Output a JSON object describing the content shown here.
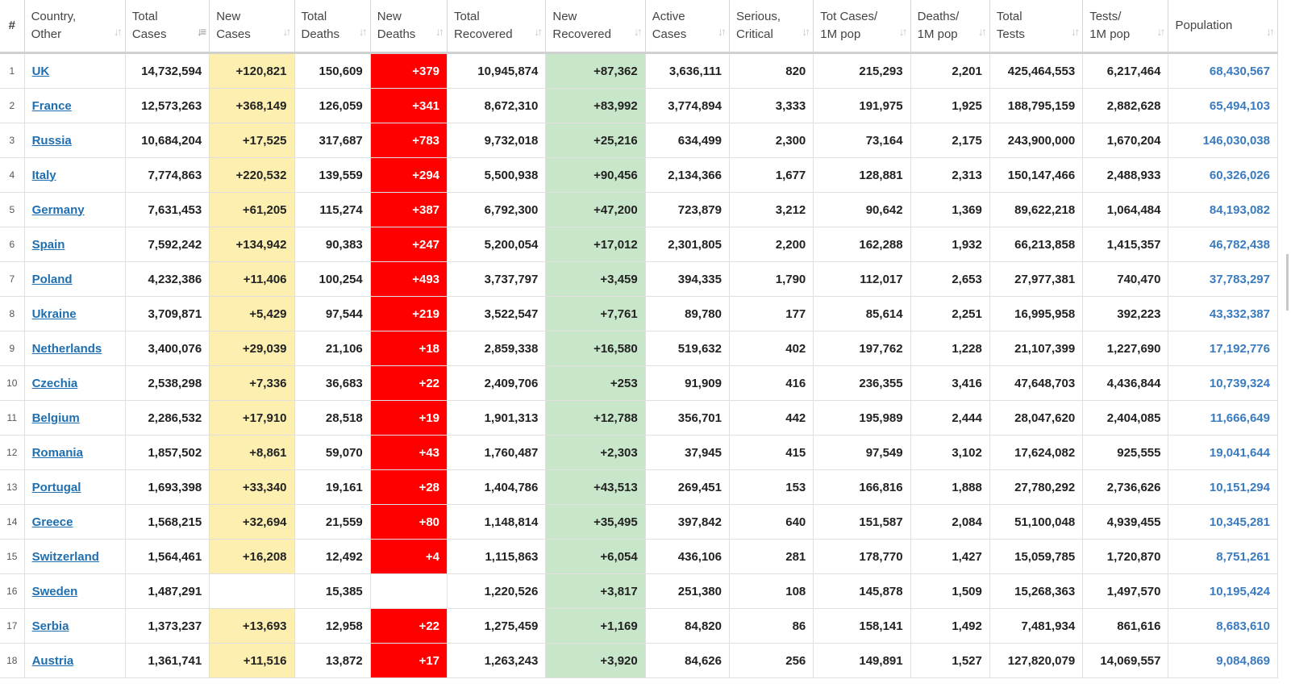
{
  "headers": [
    {
      "line1": "#",
      "line2": ""
    },
    {
      "line1": "Country,",
      "line2": "Other"
    },
    {
      "line1": "Total",
      "line2": "Cases"
    },
    {
      "line1": "New",
      "line2": "Cases"
    },
    {
      "line1": "Total",
      "line2": "Deaths"
    },
    {
      "line1": "New",
      "line2": "Deaths"
    },
    {
      "line1": "Total",
      "line2": "Recovered"
    },
    {
      "line1": "New",
      "line2": "Recovered"
    },
    {
      "line1": "Active",
      "line2": "Cases"
    },
    {
      "line1": "Serious,",
      "line2": "Critical"
    },
    {
      "line1": "Tot Cases/",
      "line2": "1M pop"
    },
    {
      "line1": "Deaths/",
      "line2": "1M pop"
    },
    {
      "line1": "Total",
      "line2": "Tests"
    },
    {
      "line1": "Tests/",
      "line2": "1M pop"
    },
    {
      "line1": "Population",
      "line2": ""
    }
  ],
  "sorted_column": "Total Cases",
  "colors": {
    "new_cases_bg": "#fcefb0",
    "new_deaths_bg": "#ff0000",
    "new_recovered_bg": "#c8e6c9",
    "link": "#1f6fb0"
  },
  "rows": [
    [
      "1",
      "UK",
      "14,732,594",
      "+120,821",
      "150,609",
      "+379",
      "10,945,874",
      "+87,362",
      "3,636,111",
      "820",
      "215,293",
      "2,201",
      "425,464,553",
      "6,217,464",
      "68,430,567"
    ],
    [
      "2",
      "France",
      "12,573,263",
      "+368,149",
      "126,059",
      "+341",
      "8,672,310",
      "+83,992",
      "3,774,894",
      "3,333",
      "191,975",
      "1,925",
      "188,795,159",
      "2,882,628",
      "65,494,103"
    ],
    [
      "3",
      "Russia",
      "10,684,204",
      "+17,525",
      "317,687",
      "+783",
      "9,732,018",
      "+25,216",
      "634,499",
      "2,300",
      "73,164",
      "2,175",
      "243,900,000",
      "1,670,204",
      "146,030,038"
    ],
    [
      "4",
      "Italy",
      "7,774,863",
      "+220,532",
      "139,559",
      "+294",
      "5,500,938",
      "+90,456",
      "2,134,366",
      "1,677",
      "128,881",
      "2,313",
      "150,147,466",
      "2,488,933",
      "60,326,026"
    ],
    [
      "5",
      "Germany",
      "7,631,453",
      "+61,205",
      "115,274",
      "+387",
      "6,792,300",
      "+47,200",
      "723,879",
      "3,212",
      "90,642",
      "1,369",
      "89,622,218",
      "1,064,484",
      "84,193,082"
    ],
    [
      "6",
      "Spain",
      "7,592,242",
      "+134,942",
      "90,383",
      "+247",
      "5,200,054",
      "+17,012",
      "2,301,805",
      "2,200",
      "162,288",
      "1,932",
      "66,213,858",
      "1,415,357",
      "46,782,438"
    ],
    [
      "7",
      "Poland",
      "4,232,386",
      "+11,406",
      "100,254",
      "+493",
      "3,737,797",
      "+3,459",
      "394,335",
      "1,790",
      "112,017",
      "2,653",
      "27,977,381",
      "740,470",
      "37,783,297"
    ],
    [
      "8",
      "Ukraine",
      "3,709,871",
      "+5,429",
      "97,544",
      "+219",
      "3,522,547",
      "+7,761",
      "89,780",
      "177",
      "85,614",
      "2,251",
      "16,995,958",
      "392,223",
      "43,332,387"
    ],
    [
      "9",
      "Netherlands",
      "3,400,076",
      "+29,039",
      "21,106",
      "+18",
      "2,859,338",
      "+16,580",
      "519,632",
      "402",
      "197,762",
      "1,228",
      "21,107,399",
      "1,227,690",
      "17,192,776"
    ],
    [
      "10",
      "Czechia",
      "2,538,298",
      "+7,336",
      "36,683",
      "+22",
      "2,409,706",
      "+253",
      "91,909",
      "416",
      "236,355",
      "3,416",
      "47,648,703",
      "4,436,844",
      "10,739,324"
    ],
    [
      "11",
      "Belgium",
      "2,286,532",
      "+17,910",
      "28,518",
      "+19",
      "1,901,313",
      "+12,788",
      "356,701",
      "442",
      "195,989",
      "2,444",
      "28,047,620",
      "2,404,085",
      "11,666,649"
    ],
    [
      "12",
      "Romania",
      "1,857,502",
      "+8,861",
      "59,070",
      "+43",
      "1,760,487",
      "+2,303",
      "37,945",
      "415",
      "97,549",
      "3,102",
      "17,624,082",
      "925,555",
      "19,041,644"
    ],
    [
      "13",
      "Portugal",
      "1,693,398",
      "+33,340",
      "19,161",
      "+28",
      "1,404,786",
      "+43,513",
      "269,451",
      "153",
      "166,816",
      "1,888",
      "27,780,292",
      "2,736,626",
      "10,151,294"
    ],
    [
      "14",
      "Greece",
      "1,568,215",
      "+32,694",
      "21,559",
      "+80",
      "1,148,814",
      "+35,495",
      "397,842",
      "640",
      "151,587",
      "2,084",
      "51,100,048",
      "4,939,455",
      "10,345,281"
    ],
    [
      "15",
      "Switzerland",
      "1,564,461",
      "+16,208",
      "12,492",
      "+4",
      "1,115,863",
      "+6,054",
      "436,106",
      "281",
      "178,770",
      "1,427",
      "15,059,785",
      "1,720,870",
      "8,751,261"
    ],
    [
      "16",
      "Sweden",
      "1,487,291",
      "",
      "15,385",
      "",
      "1,220,526",
      "+3,817",
      "251,380",
      "108",
      "145,878",
      "1,509",
      "15,268,363",
      "1,497,570",
      "10,195,424"
    ],
    [
      "17",
      "Serbia",
      "1,373,237",
      "+13,693",
      "12,958",
      "+22",
      "1,275,459",
      "+1,169",
      "84,820",
      "86",
      "158,141",
      "1,492",
      "7,481,934",
      "861,616",
      "8,683,610"
    ],
    [
      "18",
      "Austria",
      "1,361,741",
      "+11,516",
      "13,872",
      "+17",
      "1,263,243",
      "+3,920",
      "84,626",
      "256",
      "149,891",
      "1,527",
      "127,820,079",
      "14,069,557",
      "9,084,869"
    ]
  ]
}
